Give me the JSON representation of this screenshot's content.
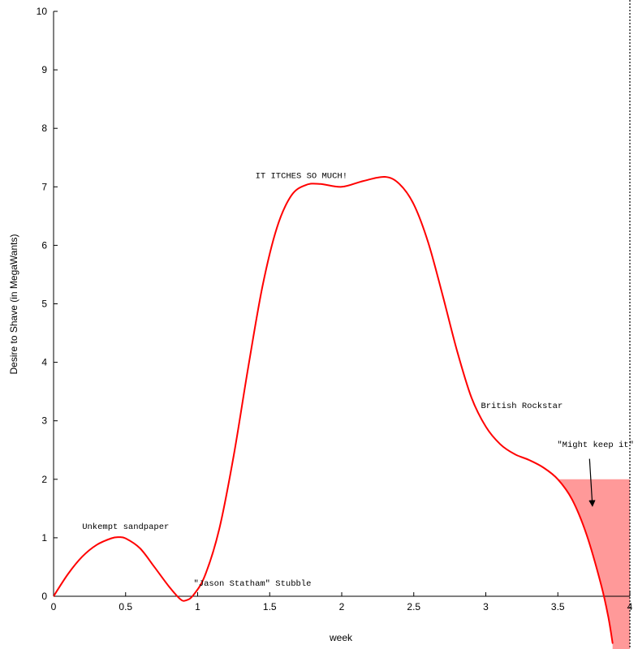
{
  "chart_data": {
    "type": "line",
    "title": "",
    "xlabel": "week",
    "ylabel": "Desire to Shave (in MegaWants)",
    "xlim": [
      0,
      4
    ],
    "ylim": [
      0,
      10
    ],
    "grid": false,
    "legend": "none",
    "x_ticks": [
      "0",
      "0.5",
      "1",
      "1.5",
      "2",
      "2.5",
      "3",
      "3.5",
      "4"
    ],
    "y_ticks": [
      "0",
      "1",
      "2",
      "3",
      "4",
      "5",
      "6",
      "7",
      "8",
      "9",
      "10"
    ],
    "series": [
      {
        "color": "#ff0000",
        "points": [
          [
            0,
            0
          ],
          [
            0.1,
            0.38
          ],
          [
            0.2,
            0.68
          ],
          [
            0.3,
            0.88
          ],
          [
            0.4,
            0.99
          ],
          [
            0.45,
            1.01
          ],
          [
            0.5,
            0.99
          ],
          [
            0.6,
            0.82
          ],
          [
            0.7,
            0.5
          ],
          [
            0.8,
            0.17
          ],
          [
            0.88,
            -0.05
          ],
          [
            0.92,
            -0.07
          ],
          [
            0.97,
            0.02
          ],
          [
            1.05,
            0.35
          ],
          [
            1.15,
            1.15
          ],
          [
            1.25,
            2.4
          ],
          [
            1.35,
            3.9
          ],
          [
            1.45,
            5.3
          ],
          [
            1.55,
            6.3
          ],
          [
            1.65,
            6.85
          ],
          [
            1.75,
            7.03
          ],
          [
            1.85,
            7.05
          ],
          [
            2.0,
            7.0
          ],
          [
            2.15,
            7.1
          ],
          [
            2.3,
            7.17
          ],
          [
            2.4,
            7.05
          ],
          [
            2.5,
            6.7
          ],
          [
            2.6,
            6.05
          ],
          [
            2.7,
            5.15
          ],
          [
            2.8,
            4.2
          ],
          [
            2.9,
            3.4
          ],
          [
            3.0,
            2.9
          ],
          [
            3.1,
            2.6
          ],
          [
            3.2,
            2.43
          ],
          [
            3.3,
            2.33
          ],
          [
            3.4,
            2.2
          ],
          [
            3.5,
            2.0
          ],
          [
            3.6,
            1.65
          ],
          [
            3.7,
            1.05
          ],
          [
            3.8,
            0.2
          ],
          [
            3.85,
            -0.35
          ],
          [
            3.88,
            -0.8
          ]
        ]
      }
    ],
    "region": {
      "label": "\"Might keep it\" zone",
      "x_from": 3.5,
      "x_to": 4,
      "y_top": 2,
      "color": "#ff9999"
    },
    "vertical_line": {
      "x": 4,
      "style": "dotted"
    },
    "annotations": [
      {
        "text": "IT ITCHES SO MUCH!",
        "x": 1.72,
        "y": 7.15
      },
      {
        "text": "Unkempt sandpaper",
        "x": 0.5,
        "y": 1.15
      },
      {
        "text": "\"Jason Statham\" Stubble",
        "x": 1.38,
        "y": 0.18
      },
      {
        "text": "British Rockstar",
        "x": 3.25,
        "y": 3.22
      },
      {
        "text": "\"Might keep it\" zone",
        "x": 3.85,
        "y": 2.55
      }
    ],
    "arrow": {
      "from": [
        3.72,
        2.35
      ],
      "to": [
        3.74,
        1.55
      ]
    }
  }
}
